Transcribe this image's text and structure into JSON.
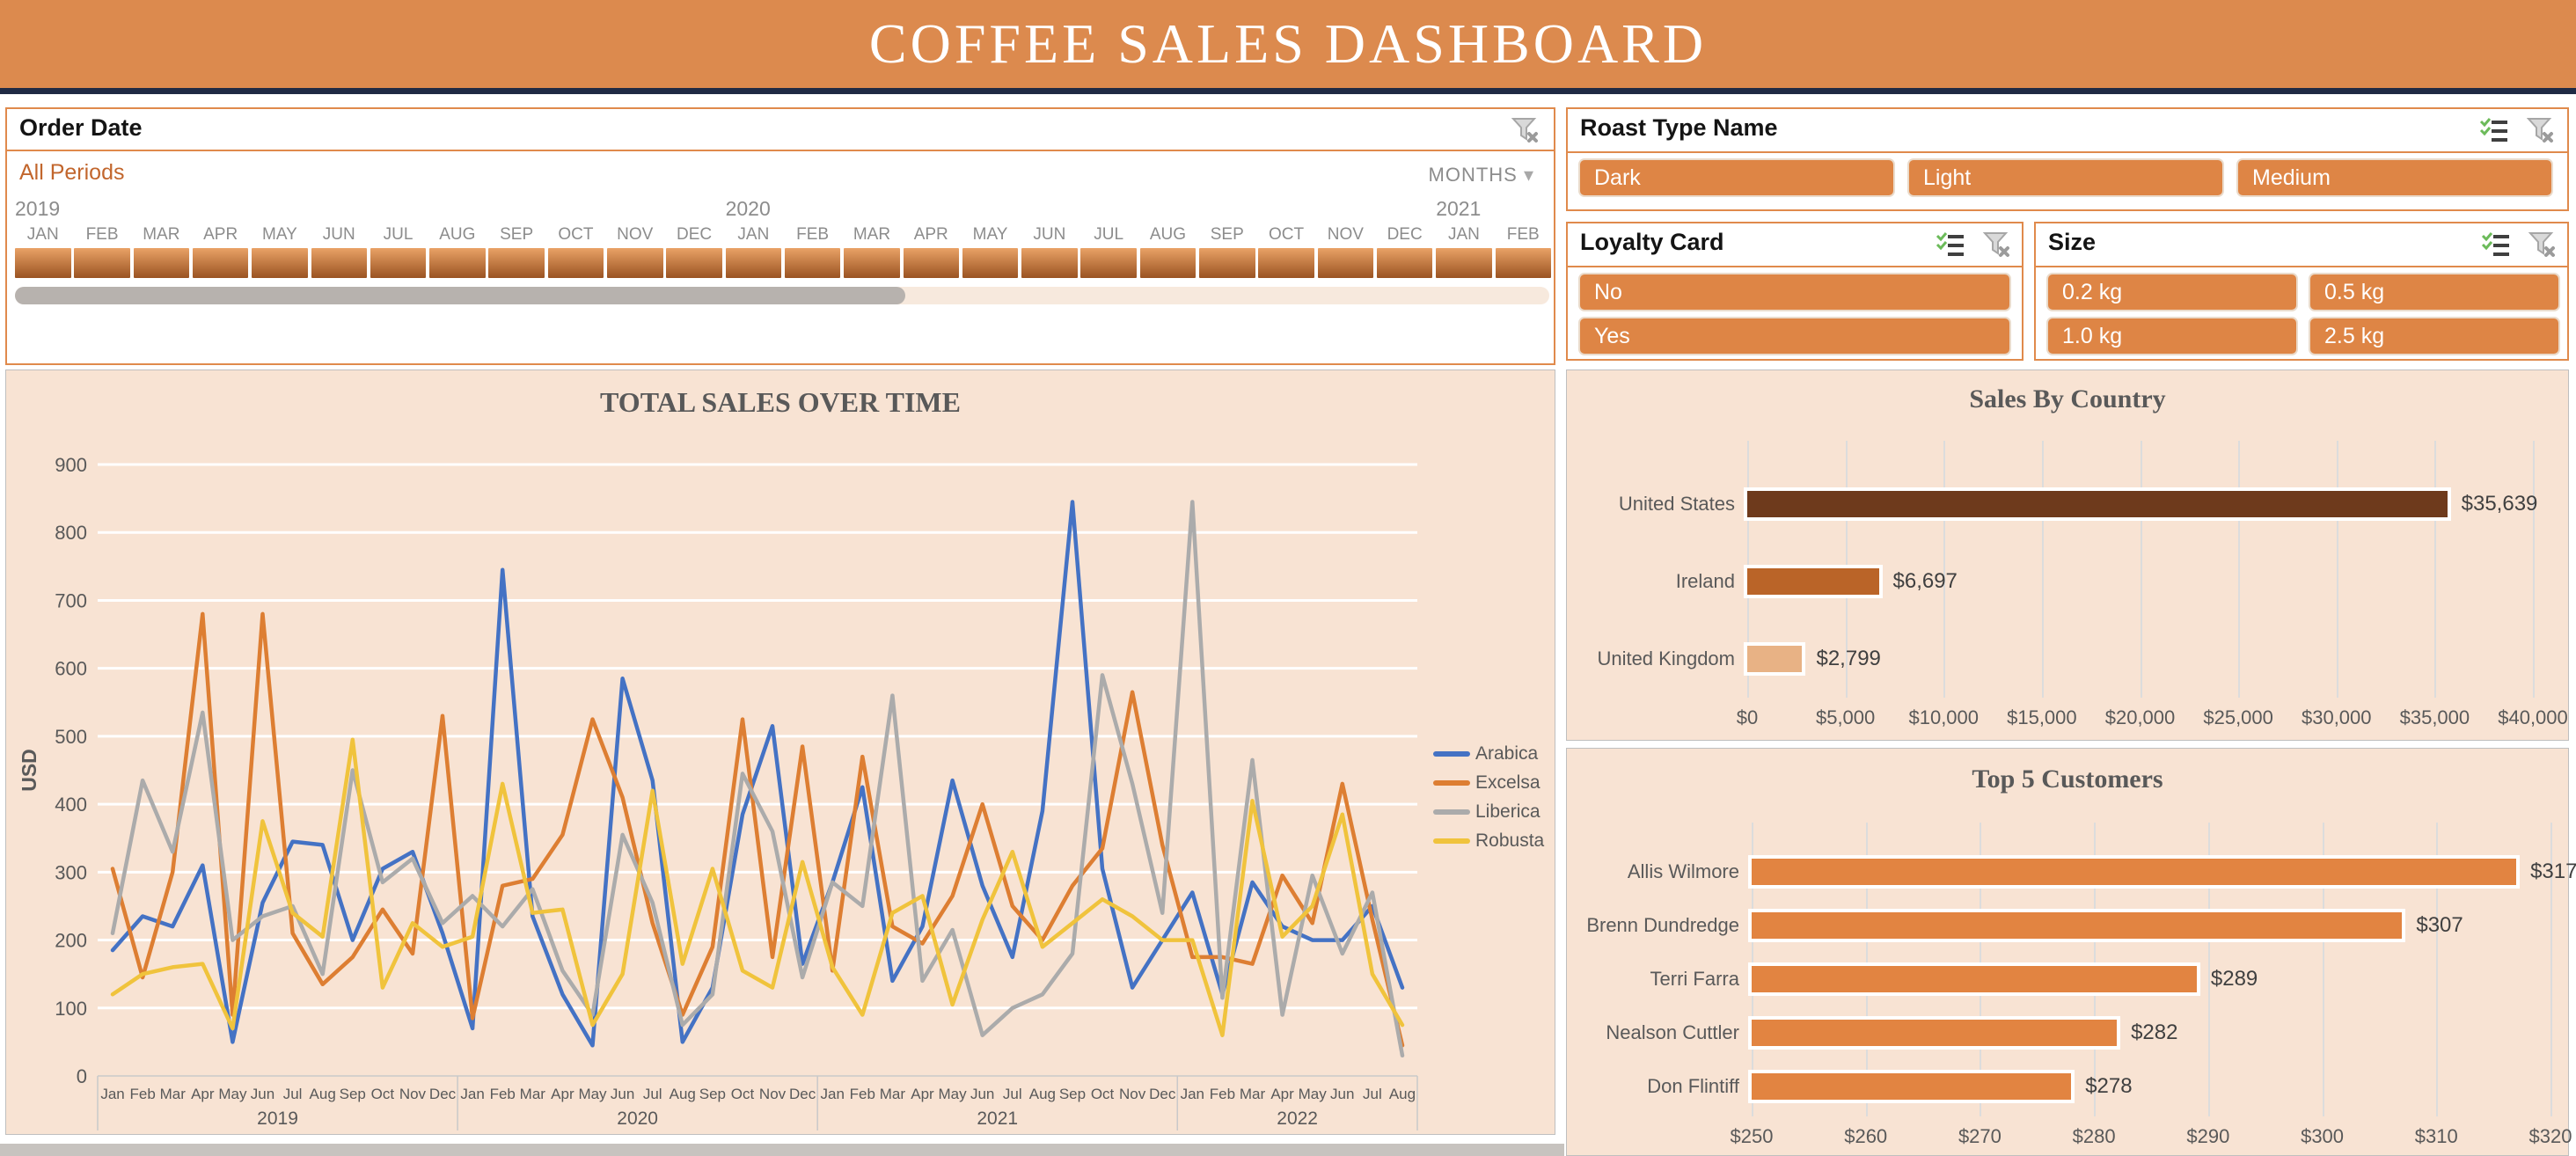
{
  "banner": {
    "title": "COFFEE SALES DASHBOARD"
  },
  "timeline": {
    "title": "Order Date",
    "period_label": "All Periods",
    "level_label": "MONTHS",
    "level_arrow": "▾",
    "clear_filter_icon": "clear-filter-icon",
    "years": [
      "2019",
      "2020",
      "2021"
    ],
    "year_start_index": [
      0,
      12,
      24
    ],
    "months": [
      "JAN",
      "FEB",
      "MAR",
      "APR",
      "MAY",
      "JUN",
      "JUL",
      "AUG",
      "SEP",
      "OCT",
      "NOV",
      "DEC",
      "JAN",
      "FEB",
      "MAR",
      "APR",
      "MAY",
      "JUN",
      "JUL",
      "AUG",
      "SEP",
      "OCT",
      "NOV",
      "DEC",
      "JAN",
      "FEB"
    ]
  },
  "slicers": {
    "roast": {
      "title": "Roast Type Name",
      "options": [
        "Dark",
        "Light",
        "Medium"
      ]
    },
    "loyalty": {
      "title": "Loyalty Card",
      "options": [
        "No",
        "Yes"
      ]
    },
    "size": {
      "title": "Size",
      "options": [
        "0.2 kg",
        "0.5 kg",
        "1.0 kg",
        "2.5 kg"
      ]
    }
  },
  "colors": {
    "banner_orange": "#DC8A4E",
    "slicer_orange": "#DE8545",
    "peach_bg": "#F8E3D3",
    "title_gray": "#595959",
    "navy_line": "#1F2A44"
  },
  "chart_data": [
    {
      "id": "total_sales_over_time",
      "type": "line",
      "title": "TOTAL SALES OVER TIME",
      "ylabel": "USD",
      "ylim": [
        0,
        900
      ],
      "ytick_step": 100,
      "grid": "horizontal-white",
      "legend_position": "right",
      "x_years": [
        "2019",
        "2020",
        "2021",
        "2022"
      ],
      "months_per_year": [
        12,
        12,
        12,
        8
      ],
      "month_names": [
        "Jan",
        "Feb",
        "Mar",
        "Apr",
        "May",
        "Jun",
        "Jul",
        "Aug",
        "Sep",
        "Oct",
        "Nov",
        "Dec"
      ],
      "series": [
        {
          "name": "Arabica",
          "color": "#4472C4",
          "values": [
            185,
            235,
            220,
            310,
            50,
            255,
            345,
            340,
            200,
            305,
            330,
            210,
            70,
            745,
            235,
            120,
            45,
            585,
            435,
            50,
            130,
            385,
            515,
            165,
            285,
            425,
            140,
            220,
            435,
            280,
            175,
            390,
            845,
            305,
            130,
            200,
            270,
            120,
            285,
            220,
            200,
            200,
            250,
            130
          ]
        },
        {
          "name": "Excelsa",
          "color": "#DD7E32",
          "values": [
            305,
            145,
            300,
            680,
            90,
            680,
            210,
            135,
            175,
            245,
            180,
            530,
            85,
            280,
            290,
            355,
            525,
            410,
            225,
            90,
            190,
            525,
            175,
            485,
            155,
            470,
            220,
            195,
            265,
            400,
            250,
            200,
            280,
            335,
            565,
            340,
            175,
            175,
            165,
            295,
            225,
            430,
            230,
            45
          ]
        },
        {
          "name": "Liberica",
          "color": "#ABABAB",
          "values": [
            210,
            435,
            330,
            535,
            200,
            235,
            250,
            150,
            450,
            285,
            320,
            225,
            265,
            220,
            275,
            155,
            90,
            355,
            255,
            75,
            120,
            445,
            360,
            145,
            285,
            250,
            560,
            140,
            215,
            60,
            100,
            120,
            180,
            590,
            430,
            240,
            845,
            115,
            465,
            90,
            295,
            180,
            270,
            30
          ]
        },
        {
          "name": "Robusta",
          "color": "#F0C33C",
          "values": [
            120,
            150,
            160,
            165,
            70,
            375,
            240,
            205,
            495,
            130,
            225,
            190,
            205,
            430,
            240,
            245,
            75,
            150,
            420,
            165,
            305,
            155,
            130,
            315,
            160,
            90,
            240,
            265,
            105,
            230,
            330,
            190,
            225,
            260,
            235,
            200,
            200,
            60,
            405,
            205,
            250,
            385,
            150,
            75
          ]
        }
      ]
    },
    {
      "id": "sales_by_country",
      "type": "bar",
      "orientation": "horizontal",
      "title": "Sales By Country",
      "categories": [
        "United States",
        "Ireland",
        "United Kingdom"
      ],
      "values": [
        35639,
        6697,
        2799
      ],
      "value_labels": [
        "$35,639",
        "$6,697",
        "$2,799"
      ],
      "bar_colors": [
        "#6E3A1C",
        "#BA6428",
        "#E8B285"
      ],
      "xlim": [
        0,
        40000
      ],
      "xticks": [
        "$0",
        "$5,000",
        "$10,000",
        "$15,000",
        "$20,000",
        "$25,000",
        "$30,000",
        "$35,000",
        "$40,000"
      ],
      "grid": "vertical-gray"
    },
    {
      "id": "top_5_customers",
      "type": "bar",
      "orientation": "horizontal",
      "title": "Top 5 Customers",
      "categories": [
        "Allis Wilmore",
        "Brenn Dundredge",
        "Terri Farra",
        "Nealson Cuttler",
        "Don Flintiff"
      ],
      "values": [
        317,
        307,
        289,
        282,
        278
      ],
      "value_labels": [
        "$317",
        "$307",
        "$289",
        "$282",
        "$278"
      ],
      "bar_colors": [
        "#E28441",
        "#E28441",
        "#E28441",
        "#E28441",
        "#E28441"
      ],
      "xlim": [
        250,
        320
      ],
      "xticks": [
        "$250",
        "$260",
        "$270",
        "$280",
        "$290",
        "$300",
        "$310",
        "$320"
      ],
      "grid": "vertical-gray"
    }
  ]
}
